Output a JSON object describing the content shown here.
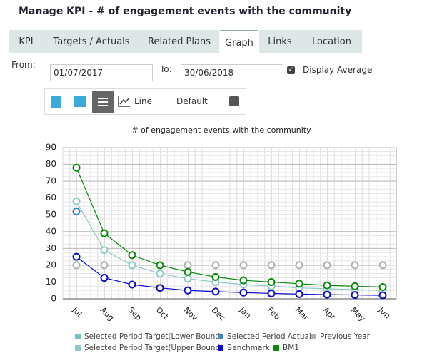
{
  "header": {
    "title": "Manage KPI - # of engagement events with the community"
  },
  "tabs": [
    "KPI",
    "Targets / Actuals",
    "Related Plans",
    "Graph",
    "Links",
    "Location"
  ],
  "form": {
    "from_label": "From:",
    "from_value": "01/07/2017",
    "to_label": "To:",
    "to_value": "30/06/2018",
    "average_label": "Display Average"
  },
  "toolbar": {
    "line_label": "Line",
    "default_label": "Default"
  },
  "chart_data": {
    "type": "line",
    "title": "# of engagement events with the community",
    "categories": [
      "Jul",
      "Aug",
      "Sep",
      "Oct",
      "Nov",
      "Dec",
      "Jan",
      "Feb",
      "Mar",
      "Apr",
      "May",
      "Jun"
    ],
    "ylim": [
      0,
      90
    ],
    "yticks": [
      0,
      10,
      20,
      30,
      40,
      50,
      60,
      70,
      80,
      90
    ],
    "grid": true,
    "series": [
      {
        "name": "Selected Period Target(Lower Bound)",
        "color": "#79bfc6",
        "values": [
          null,
          null,
          null,
          null,
          null,
          null,
          null,
          null,
          null,
          null,
          null,
          null
        ]
      },
      {
        "name": "Selected Period Actual",
        "color": "#3a87c8",
        "values": [
          52,
          null,
          null,
          null,
          null,
          null,
          null,
          null,
          null,
          null,
          null,
          null
        ]
      },
      {
        "name": "Previous Year",
        "color": "#b0b0b0",
        "values": [
          20,
          20,
          20,
          20,
          20,
          20,
          20,
          20,
          20,
          20,
          20,
          20
        ]
      },
      {
        "name": "Selected Period Target(Upper Bound)",
        "color": "#8ec8c8",
        "values": [
          58,
          29,
          20,
          15,
          12,
          10,
          8.5,
          7.5,
          6.5,
          6,
          5.5,
          5
        ]
      },
      {
        "name": "Benchmark",
        "color": "#0a0ad0",
        "values": [
          25,
          12.5,
          8.5,
          6.5,
          5,
          4.3,
          3.7,
          3.2,
          2.8,
          2.5,
          2.3,
          2.1
        ]
      },
      {
        "name": "BM1",
        "color": "#0a8a0a",
        "values": [
          78,
          39,
          26,
          20,
          16,
          13,
          11,
          10,
          9,
          8,
          7.5,
          7
        ]
      }
    ]
  }
}
